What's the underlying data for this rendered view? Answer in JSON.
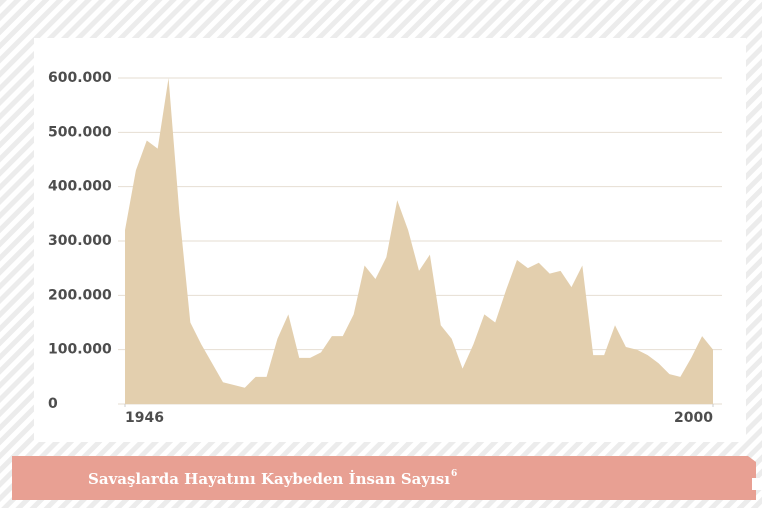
{
  "chart_data": {
    "type": "area",
    "caption": "Savaşlarda Hayatını Kaybeden İnsan Sayısı",
    "footnote": "6",
    "color": "#e3cfae",
    "grid": true,
    "x": [
      1946,
      1947,
      1948,
      1949,
      1950,
      1951,
      1952,
      1953,
      1954,
      1955,
      1956,
      1957,
      1958,
      1959,
      1960,
      1961,
      1962,
      1963,
      1964,
      1965,
      1966,
      1967,
      1968,
      1969,
      1970,
      1971,
      1972,
      1973,
      1974,
      1975,
      1976,
      1977,
      1978,
      1979,
      1980,
      1981,
      1982,
      1983,
      1984,
      1985,
      1986,
      1987,
      1988,
      1989,
      1990,
      1991,
      1992,
      1993,
      1994,
      1995,
      1996,
      1997,
      1998,
      1999,
      2000
    ],
    "values": [
      320000,
      430000,
      485000,
      470000,
      600000,
      350000,
      150000,
      110000,
      75000,
      40000,
      35000,
      30000,
      50000,
      50000,
      120000,
      165000,
      85000,
      85000,
      95000,
      125000,
      125000,
      165000,
      255000,
      230000,
      270000,
      375000,
      320000,
      245000,
      275000,
      145000,
      120000,
      65000,
      110000,
      165000,
      150000,
      210000,
      265000,
      250000,
      260000,
      240000,
      245000,
      215000,
      255000,
      90000,
      90000,
      145000,
      105000,
      100000,
      90000,
      75000,
      55000,
      50000,
      85000,
      125000,
      100000
    ],
    "xlim": [
      1946,
      2000
    ],
    "xticks": [
      1946,
      2000
    ],
    "ylim": [
      0,
      600000
    ],
    "yticks": [
      0,
      {
        "value": 100000,
        "label": "100.000"
      },
      {
        "value": 200000,
        "label": "200.000"
      },
      {
        "value": 300000,
        "label": "300.000"
      },
      {
        "value": 400000,
        "label": "400.000"
      },
      {
        "value": 500000,
        "label": "500.000"
      },
      {
        "value": 600000,
        "label": "600.000"
      }
    ]
  }
}
